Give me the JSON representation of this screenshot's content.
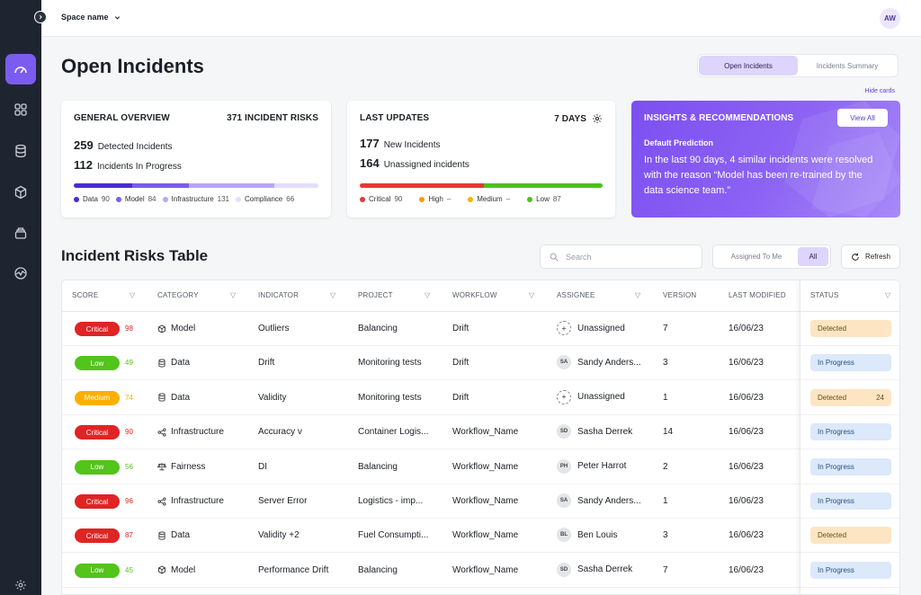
{
  "topbar": {
    "space_name": "Space name",
    "avatar": "AW"
  },
  "sidebar": {
    "icons": [
      "dashboard-icon",
      "grid-icon",
      "database-icon",
      "cube-icon",
      "layers-icon",
      "activity-icon",
      "settings-icon"
    ]
  },
  "page": {
    "title": "Open Incidents",
    "tabs": [
      "Open Incidents",
      "Incidents Summary"
    ],
    "hide_cards": "Hide cards"
  },
  "overview": {
    "title": "GENERAL OVERVIEW",
    "risks": "371 INCIDENT RISKS",
    "detected_num": "259",
    "detected_label": "Detected Incidents",
    "progress_num": "112",
    "progress_label": "Incidents In Progress",
    "legend": [
      {
        "label": "Data",
        "value": "90",
        "color": "#4a2bd4"
      },
      {
        "label": "Model",
        "value": "84",
        "color": "#7b5cf0"
      },
      {
        "label": "Infrastructure",
        "value": "131",
        "color": "#b9a6f7"
      },
      {
        "label": "Compliance",
        "value": "66",
        "color": "#e4ddfc"
      }
    ]
  },
  "updates": {
    "title": "LAST UPDATES",
    "days": "7 DAYS",
    "new_num": "177",
    "new_label": "New Incidents",
    "unassigned_num": "164",
    "unassigned_label": "Unassigned incidents",
    "legend": [
      {
        "label": "Critical",
        "value": "90",
        "color": "#e53935"
      },
      {
        "label": "High",
        "value": "–",
        "color": "#f39c12"
      },
      {
        "label": "Medium",
        "value": "–",
        "color": "#f5b400"
      },
      {
        "label": "Low",
        "value": "87",
        "color": "#4cc21a"
      }
    ]
  },
  "insights": {
    "title": "INSIGHTS & RECOMMENDATIONS",
    "button": "View All",
    "subtitle": "Default Prediction",
    "text": "In the last 90 days, 4 similar incidents were resolved with the reason “Model has been re-trained by the data science team.”"
  },
  "table": {
    "title": "Incident Risks Table",
    "search_placeholder": "Search",
    "filter_options": [
      "Assigned To Me",
      "All"
    ],
    "refresh": "Refresh",
    "headers": [
      "SCORE",
      "CATEGORY",
      "INDICATOR",
      "PROJECT",
      "WORKFLOW",
      "ASSIGNEE",
      "VERSION",
      "LAST MODIFIED",
      "STATUS"
    ],
    "rows": [
      {
        "level": "Critical",
        "score": "98",
        "category": "Model",
        "cat_icon": "cube-icon",
        "indicator": "Outliers",
        "project": "Balancing",
        "workflow": "Drift",
        "initials": "+",
        "assignee": "Unassigned",
        "version": "7",
        "modified": "16/06/23",
        "status": "Detected",
        "count": ""
      },
      {
        "level": "Low",
        "score": "49",
        "category": "Data",
        "cat_icon": "database-icon",
        "indicator": "Drift",
        "project": "Monitoring tests",
        "workflow": "Drift",
        "initials": "SA",
        "assignee": "Sandy Anders...",
        "version": "3",
        "modified": "16/06/23",
        "status": "In Progress",
        "count": ""
      },
      {
        "level": "Medium",
        "score": "74",
        "category": "Data",
        "cat_icon": "database-icon",
        "indicator": "Validity",
        "project": "Monitoring tests",
        "workflow": "Drift",
        "initials": "+",
        "assignee": "Unassigned",
        "version": "1",
        "modified": "16/06/23",
        "status": "Detected",
        "count": "24"
      },
      {
        "level": "Critical",
        "score": "90",
        "category": "Infrastructure",
        "cat_icon": "share-icon",
        "indicator": "Accuracy  v",
        "project": "Container Logis...",
        "workflow": "Workflow_Name",
        "initials": "SD",
        "assignee": "Sasha Derrek",
        "version": "14",
        "modified": "16/06/23",
        "status": "In Progress",
        "count": ""
      },
      {
        "level": "Low",
        "score": "56",
        "category": "Fairness",
        "cat_icon": "scale-icon",
        "indicator": "DI",
        "project": "Balancing",
        "workflow": "Workflow_Name",
        "initials": "PH",
        "assignee": "Peter Harrot",
        "version": "2",
        "modified": "16/06/23",
        "status": "In Progress",
        "count": ""
      },
      {
        "level": "Critical",
        "score": "96",
        "category": "Infrastructure",
        "cat_icon": "share-icon",
        "indicator": "Server Error",
        "project": "Logistics - imp...",
        "workflow": "Workflow_Name",
        "initials": "SA",
        "assignee": "Sandy Anders...",
        "version": "1",
        "modified": "16/06/23",
        "status": "In Progress",
        "count": ""
      },
      {
        "level": "Critical",
        "score": "87",
        "category": "Data",
        "cat_icon": "database-icon",
        "indicator": "Validity  +2",
        "project": "Fuel Consumpti...",
        "workflow": "Workflow_Name",
        "initials": "BL",
        "assignee": "Ben Louis",
        "version": "3",
        "modified": "16/06/23",
        "status": "Detected",
        "count": ""
      },
      {
        "level": "Low",
        "score": "45",
        "category": "Model",
        "cat_icon": "cube-icon",
        "indicator": "Performance Drift",
        "project": "Balancing",
        "workflow": "Workflow_Name",
        "initials": "SD",
        "assignee": "Sasha Derrek",
        "version": "7",
        "modified": "16/06/23",
        "status": "In Progress",
        "count": ""
      }
    ]
  },
  "colors": {
    "critical": "#e02424",
    "low": "#52c41a",
    "medium": "#fbb000",
    "accent": "#7b5cf0"
  }
}
